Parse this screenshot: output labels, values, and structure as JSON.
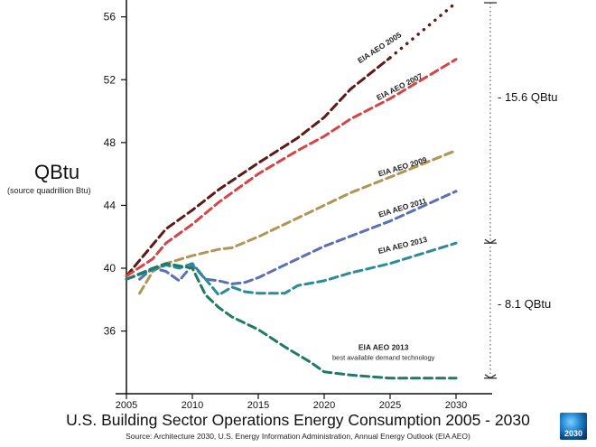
{
  "title": "U.S. Building Sector Operations Energy Consumption 2005 - 2030",
  "source": "Source: Architecture 2030, U.S. Energy Information Administration, Annual Energy Outlook (EIA AEO)",
  "ylabel": "QBtu",
  "ylabel_sub": "(source quadrillion Btu)",
  "logo_text": "2030",
  "annotations": {
    "gap_top": "- 15.6 QBtu",
    "gap_bottom": "- 8.1 QBtu",
    "aeo2013_demand_line1": "EIA AEO 2013",
    "aeo2013_demand_line2": "best available demand technology"
  },
  "chart_data": {
    "type": "line",
    "title": "U.S. Building Sector Operations Energy Consumption 2005 - 2030",
    "xlabel": "",
    "ylabel": "QBtu",
    "xlim": [
      2005,
      2030
    ],
    "ylim": [
      32.7,
      56.5
    ],
    "x_ticks": [
      2005,
      2010,
      2015,
      2020,
      2025,
      2030
    ],
    "y_ticks": [
      36,
      40,
      44,
      48,
      52,
      56
    ],
    "grid": false,
    "series": [
      {
        "name": "EIA AEO 2005",
        "color": "#5e1a14",
        "points": [
          [
            2005,
            39.5
          ],
          [
            2006,
            40.5
          ],
          [
            2007,
            41.5
          ],
          [
            2008,
            42.5
          ],
          [
            2010,
            43.7
          ],
          [
            2012,
            45.0
          ],
          [
            2015,
            46.7
          ],
          [
            2018,
            48.3
          ],
          [
            2020,
            49.6
          ],
          [
            2022,
            51.4
          ],
          [
            2025,
            53.4
          ]
        ],
        "dotted_points": [
          [
            2025,
            53.4
          ],
          [
            2026,
            54.1
          ],
          [
            2027,
            54.8
          ],
          [
            2028,
            55.5
          ],
          [
            2029,
            56.2
          ],
          [
            2030,
            56.9
          ]
        ]
      },
      {
        "name": "EIA AEO 2007",
        "color": "#d64545",
        "points": [
          [
            2005,
            39.5
          ],
          [
            2007,
            40.6
          ],
          [
            2008,
            41.6
          ],
          [
            2010,
            42.8
          ],
          [
            2012,
            44.2
          ],
          [
            2015,
            46.0
          ],
          [
            2018,
            47.5
          ],
          [
            2020,
            48.4
          ],
          [
            2022,
            49.5
          ],
          [
            2025,
            50.8
          ],
          [
            2027,
            51.8
          ],
          [
            2030,
            53.3
          ]
        ]
      },
      {
        "name": "EIA AEO 2009",
        "color": "#b09555",
        "points": [
          [
            2006,
            38.4
          ],
          [
            2007,
            39.8
          ],
          [
            2008,
            40.3
          ],
          [
            2010,
            40.8
          ],
          [
            2012,
            41.2
          ],
          [
            2013,
            41.3
          ],
          [
            2015,
            42.0
          ],
          [
            2018,
            43.2
          ],
          [
            2020,
            44.0
          ],
          [
            2022,
            44.8
          ],
          [
            2025,
            45.8
          ],
          [
            2030,
            47.5
          ]
        ]
      },
      {
        "name": "EIA AEO 2011",
        "color": "#5b6fb5",
        "points": [
          [
            2006,
            39.3
          ],
          [
            2007,
            40.0
          ],
          [
            2008,
            39.8
          ],
          [
            2009,
            39.2
          ],
          [
            2010,
            40.2
          ],
          [
            2011,
            39.3
          ],
          [
            2012,
            39.2
          ],
          [
            2013,
            39.0
          ],
          [
            2014,
            39.1
          ],
          [
            2015,
            39.4
          ],
          [
            2017,
            40.2
          ],
          [
            2020,
            41.4
          ],
          [
            2025,
            43.0
          ],
          [
            2030,
            44.9
          ]
        ]
      },
      {
        "name": "EIA AEO 2013",
        "color": "#2a8c97",
        "points": [
          [
            2005,
            39.3
          ],
          [
            2006,
            39.6
          ],
          [
            2007,
            39.9
          ],
          [
            2008,
            40.2
          ],
          [
            2009,
            40.0
          ],
          [
            2010,
            40.3
          ],
          [
            2011,
            39.3
          ],
          [
            2012,
            38.3
          ],
          [
            2013,
            38.8
          ],
          [
            2014,
            38.5
          ],
          [
            2015,
            38.4
          ],
          [
            2017,
            38.4
          ],
          [
            2018,
            38.9
          ],
          [
            2020,
            39.2
          ],
          [
            2022,
            39.7
          ],
          [
            2025,
            40.3
          ],
          [
            2030,
            41.6
          ]
        ]
      },
      {
        "name": "EIA AEO 2013 best available demand technology",
        "color": "#1f7a66",
        "points": [
          [
            2005,
            39.3
          ],
          [
            2007,
            40.0
          ],
          [
            2008,
            40.3
          ],
          [
            2010,
            40.0
          ],
          [
            2011,
            38.3
          ],
          [
            2012,
            37.5
          ],
          [
            2013,
            36.9
          ],
          [
            2015,
            36.1
          ],
          [
            2017,
            35.0
          ],
          [
            2019,
            34.0
          ],
          [
            2020,
            33.4
          ],
          [
            2022,
            33.2
          ],
          [
            2025,
            33.0
          ],
          [
            2030,
            33.0
          ]
        ]
      }
    ]
  }
}
